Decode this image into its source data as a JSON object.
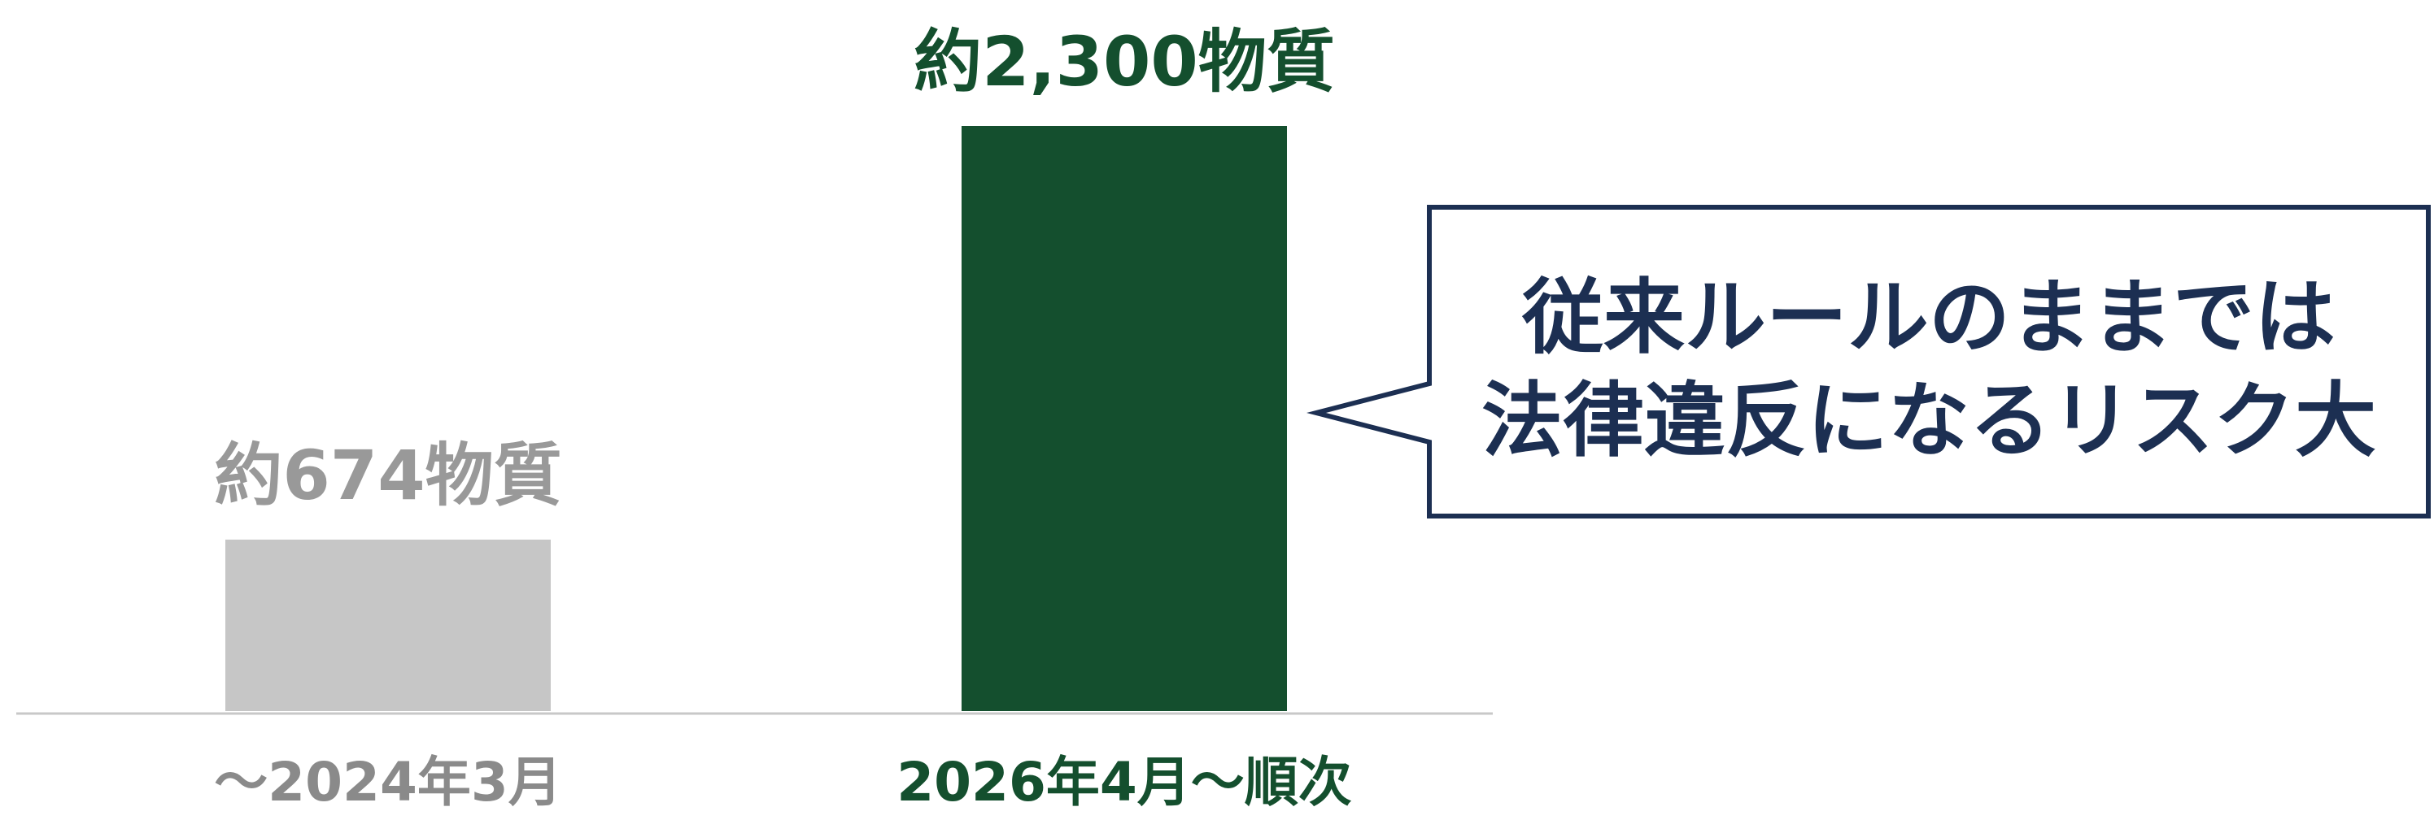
{
  "chart_data": {
    "type": "bar",
    "categories": [
      "～2024年3月",
      "2026年4月～順次"
    ],
    "values": [
      674,
      2300
    ],
    "data_labels": [
      "約674物質",
      "約2,300物質"
    ],
    "colors": [
      "#c6c6c6",
      "#144f2e"
    ],
    "label_colors": [
      "#999999",
      "#144f2e"
    ],
    "category_label_colors": [
      "#8a8a8a",
      "#144f2e"
    ],
    "ylim": [
      0,
      2300
    ],
    "grid": false,
    "legend": "none",
    "callout": {
      "lines": [
        "従来ルールのままでは",
        "法律違反になるリスク大"
      ],
      "border_color": "#1c2f52",
      "text_color": "#1c2f52"
    }
  },
  "colors": {
    "axis": "#c8c8c8"
  }
}
